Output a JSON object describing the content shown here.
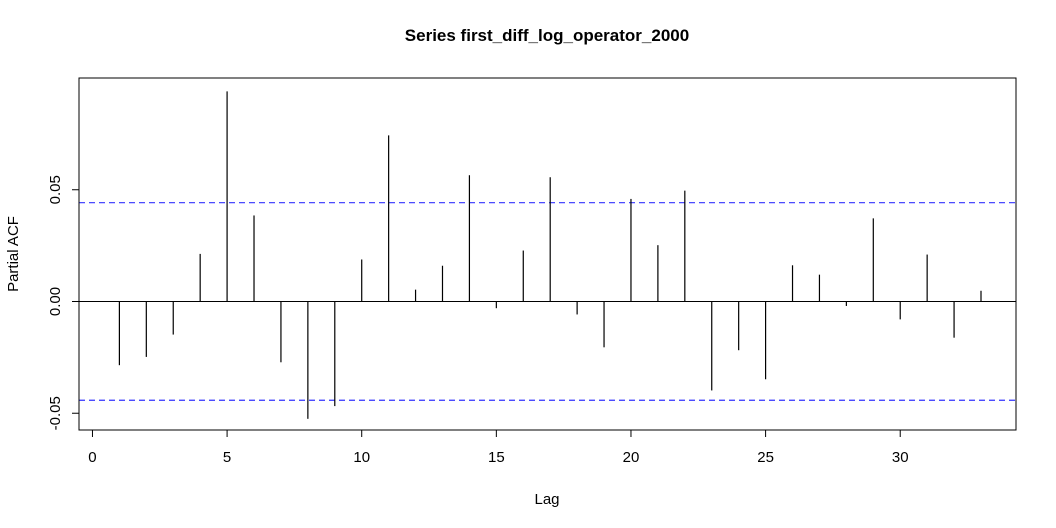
{
  "chart_data": {
    "type": "bar",
    "title": "Series  first_diff_log_operator_2000",
    "xlabel": "Lag",
    "ylabel": "Partial ACF",
    "xlim": [
      -0.5,
      34.3
    ],
    "ylim": [
      -0.0575,
      0.1
    ],
    "x_ticks": [
      0,
      5,
      10,
      15,
      20,
      25,
      30
    ],
    "y_ticks": [
      -0.05,
      0.0,
      0.05
    ],
    "y_tick_labels": [
      "-0.05",
      "0.00",
      "0.05"
    ],
    "confidence_bound": 0.0442,
    "confidence_color": "#3333ff",
    "series": [
      {
        "lags": [
          1,
          2,
          3,
          4,
          5,
          6,
          7,
          8,
          9,
          10,
          11,
          12,
          13,
          14,
          15,
          16,
          17,
          18,
          19,
          20,
          21,
          22,
          23,
          24,
          25,
          26,
          27,
          28,
          29,
          30,
          31,
          32,
          33
        ],
        "values": [
          -0.0285,
          -0.0248,
          -0.0148,
          0.0213,
          0.094,
          0.0385,
          -0.0272,
          -0.0525,
          -0.0468,
          0.0188,
          0.0743,
          0.0053,
          0.016,
          0.0565,
          -0.003,
          0.0228,
          0.0556,
          -0.0058,
          -0.0205,
          0.0459,
          0.0252,
          0.0496,
          -0.0398,
          -0.0218,
          -0.0348,
          0.0162,
          0.012,
          -0.002,
          0.0372,
          -0.008,
          0.021,
          -0.0162,
          0.0048
        ]
      }
    ]
  }
}
